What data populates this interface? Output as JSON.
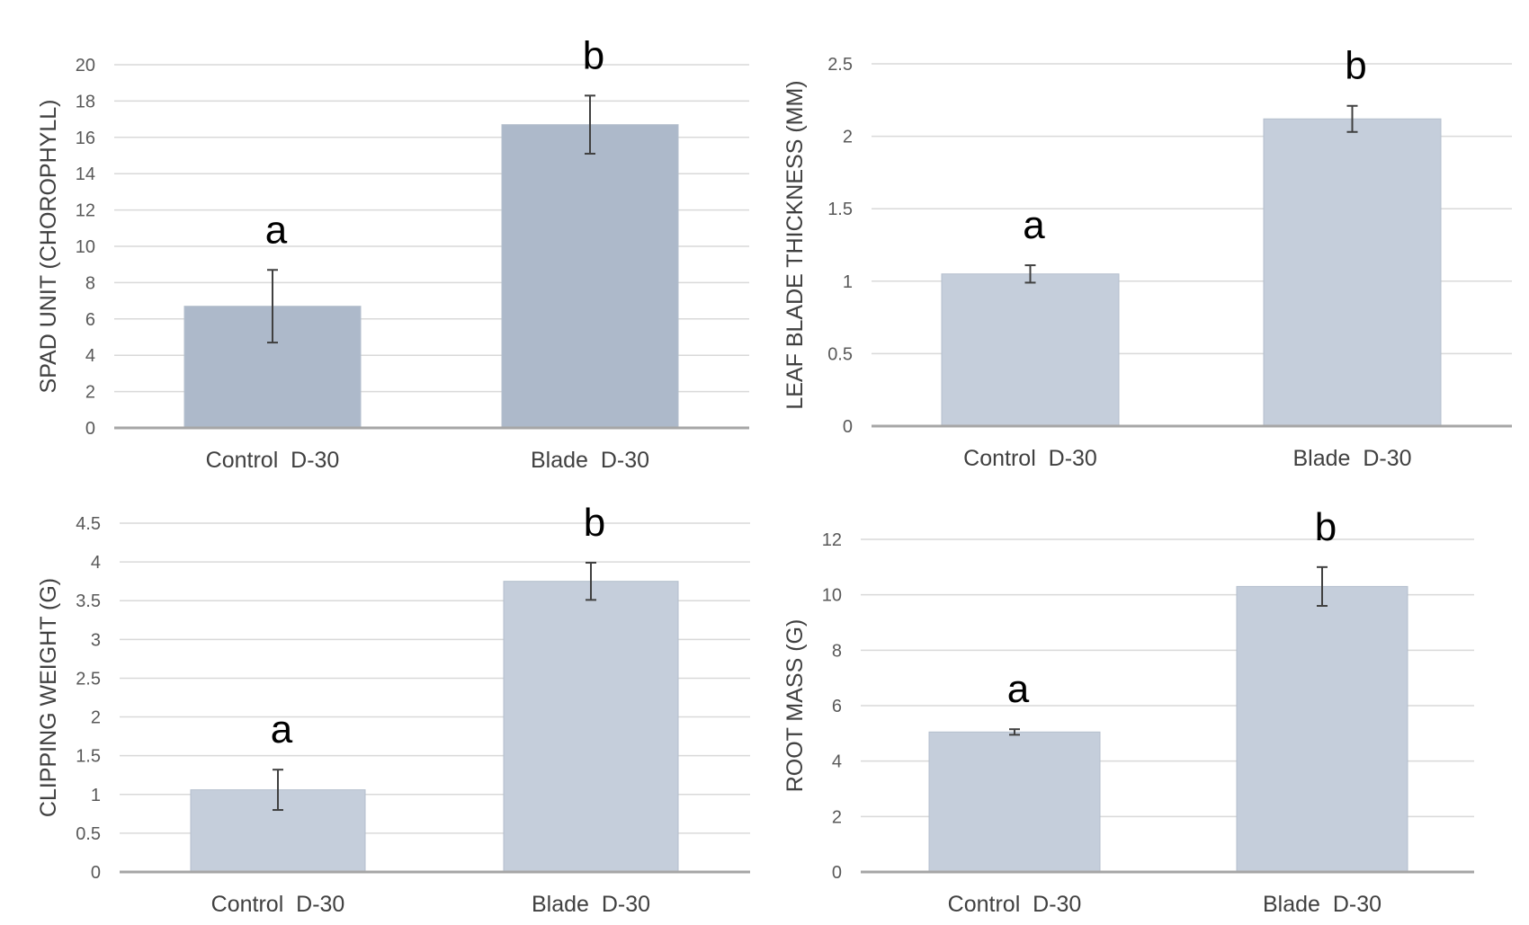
{
  "chart_data": [
    {
      "type": "bar",
      "categories": [
        "Control  D-30",
        "Blade  D-30"
      ],
      "values": [
        6.7,
        16.7
      ],
      "error": [
        2.0,
        1.6
      ],
      "significance": [
        "a",
        "b"
      ],
      "ylabel": "SPAD UNIT (CHOROPHYLL)",
      "ylim": [
        0,
        20
      ],
      "yticks": [
        0,
        2,
        4,
        6,
        8,
        10,
        12,
        14,
        16,
        18,
        20
      ],
      "color": "#adb9ca",
      "grid": true
    },
    {
      "type": "bar",
      "categories": [
        "Control  D-30",
        "Blade  D-30"
      ],
      "values": [
        1.05,
        2.12
      ],
      "error": [
        0.06,
        0.09
      ],
      "significance": [
        "a",
        "b"
      ],
      "ylabel": "LEAF BLADE THICKNESS (MM)",
      "ylim": [
        0,
        2.5
      ],
      "yticks": [
        0,
        0.5,
        1,
        1.5,
        2,
        2.5
      ],
      "color": "#c5cedb",
      "grid": true
    },
    {
      "type": "bar",
      "categories": [
        "Control  D-30",
        "Blade  D-30"
      ],
      "values": [
        1.06,
        3.75
      ],
      "error": [
        0.26,
        0.24
      ],
      "significance": [
        "a",
        "b"
      ],
      "ylabel": "CLIPPING WEIGHT (G)",
      "ylim": [
        0,
        4.5
      ],
      "yticks": [
        0,
        0.5,
        1,
        1.5,
        2,
        2.5,
        3,
        3.5,
        4,
        4.5
      ],
      "color": "#c5cedb",
      "grid": true
    },
    {
      "type": "bar",
      "categories": [
        "Control  D-30",
        "Blade  D-30"
      ],
      "values": [
        5.05,
        10.3
      ],
      "error": [
        0.1,
        0.7
      ],
      "significance": [
        "a",
        "b"
      ],
      "ylabel": "ROOT MASS (G)",
      "ylim": [
        0,
        12
      ],
      "yticks": [
        0,
        2,
        4,
        6,
        8,
        10,
        12
      ],
      "color": "#c5cedb",
      "grid": true
    }
  ]
}
